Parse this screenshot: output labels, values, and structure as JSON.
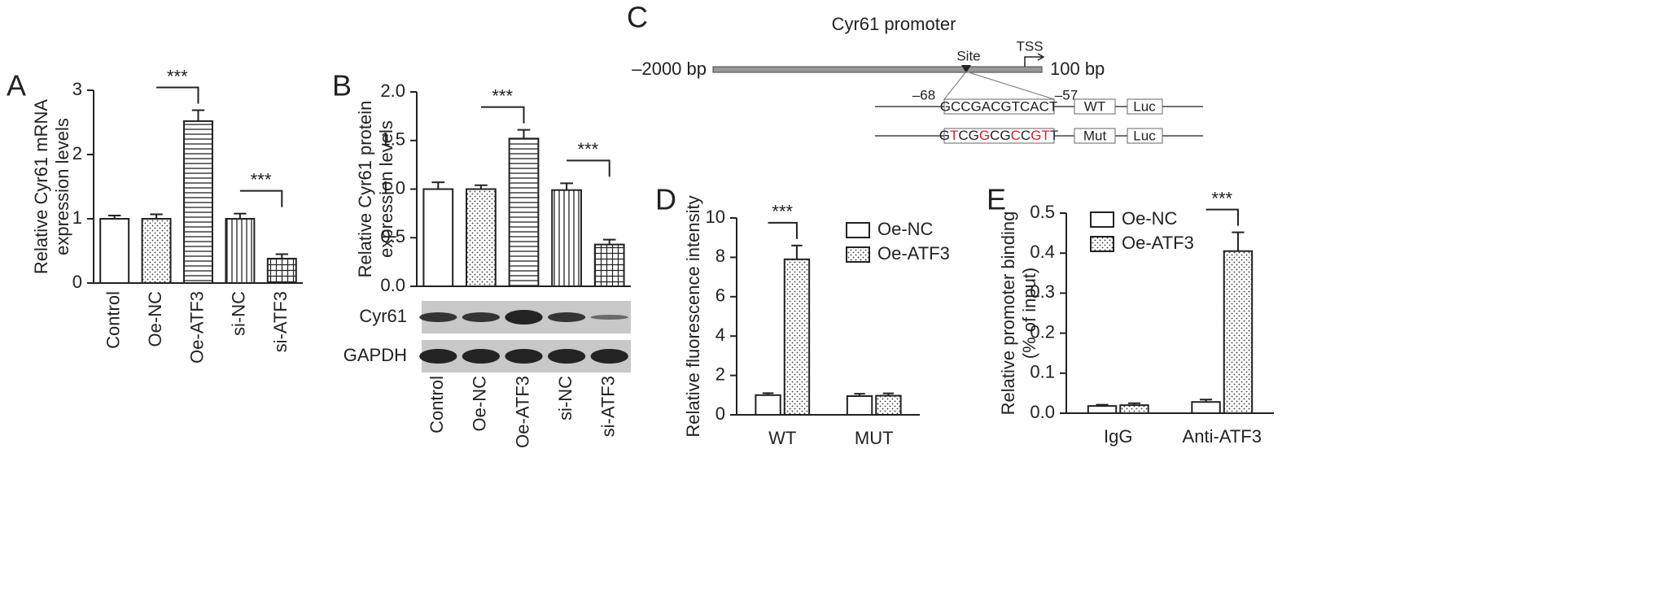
{
  "chart_data": [
    {
      "panel": "A",
      "type": "bar",
      "ylabel": [
        "Relative Cyr61 mRNA",
        "expression levels"
      ],
      "categories": [
        "Control",
        "Oe-NC",
        "Oe-ATF3",
        "si-NC",
        "si-ATF3"
      ],
      "values": [
        1.0,
        1.0,
        2.52,
        1.0,
        0.38
      ],
      "errors": [
        0.05,
        0.07,
        0.17,
        0.08,
        0.07
      ],
      "patterns": [
        "none",
        "dots",
        "hlines",
        "vlines",
        "grid"
      ],
      "ylim": [
        0,
        3
      ],
      "yticks": [
        0,
        1,
        2,
        3
      ],
      "annotations": [
        {
          "text": "***",
          "between": [
            "Oe-NC",
            "Oe-ATF3"
          ]
        },
        {
          "text": "***",
          "between": [
            "si-NC",
            "si-ATF3"
          ]
        }
      ]
    },
    {
      "panel": "B",
      "type": "bar",
      "ylabel": [
        "Relative Cyr61 protein",
        "expression levels"
      ],
      "categories": [
        "Control",
        "Oe-NC",
        "Oe-ATF3",
        "si-NC",
        "si-ATF3"
      ],
      "values": [
        1.0,
        1.0,
        1.52,
        0.99,
        0.43
      ],
      "errors": [
        0.07,
        0.04,
        0.09,
        0.07,
        0.05
      ],
      "patterns": [
        "none",
        "dots",
        "hlines",
        "vlines",
        "grid"
      ],
      "ylim": [
        0,
        2
      ],
      "yticks": [
        {
          "value": 0,
          "label": "0.0"
        },
        0.5,
        {
          "value": 1,
          "label": "1.0"
        },
        1.5,
        {
          "value": 2,
          "label": "2.0"
        }
      ],
      "blot_labels": [
        "Cyr61",
        "GAPDH"
      ],
      "annotations": [
        {
          "text": "***",
          "between": [
            "Oe-NC",
            "Oe-ATF3"
          ]
        },
        {
          "text": "***",
          "between": [
            "si-NC",
            "si-ATF3"
          ]
        }
      ]
    },
    {
      "panel": "D",
      "type": "grouped-bar",
      "ylabel": [
        "Relative fluorescence intensity"
      ],
      "categories": [
        "WT",
        "MUT"
      ],
      "series": [
        {
          "name": "Oe-NC",
          "pattern": "none",
          "values": [
            1.0,
            0.95
          ],
          "errors": [
            0.1,
            0.12
          ]
        },
        {
          "name": "Oe-ATF3",
          "pattern": "dots",
          "values": [
            7.9,
            0.97
          ],
          "errors": [
            0.7,
            0.12
          ]
        }
      ],
      "ylim": [
        0,
        10
      ],
      "yticks": [
        0,
        2,
        4,
        6,
        8,
        10
      ],
      "legend": "top-right",
      "annotations": [
        {
          "text": "***",
          "category": "WT"
        }
      ]
    },
    {
      "panel": "E",
      "type": "grouped-bar",
      "ylabel": [
        "Relative promoter binding",
        "(% of input)"
      ],
      "categories": [
        "IgG",
        "Anti-ATF3"
      ],
      "series": [
        {
          "name": "Oe-NC",
          "pattern": "none",
          "values": [
            0.018,
            0.028
          ],
          "errors": [
            0.003,
            0.006
          ]
        },
        {
          "name": "Oe-ATF3",
          "pattern": "dots",
          "values": [
            0.02,
            0.405
          ],
          "errors": [
            0.005,
            0.047
          ]
        }
      ],
      "ylim": [
        0,
        0.5
      ],
      "yticks": [
        {
          "value": 0,
          "label": "0.0"
        },
        0.1,
        0.2,
        0.3,
        0.4,
        0.5
      ],
      "legend": "top-left",
      "annotations": [
        {
          "text": "***",
          "category": "Anti-ATF3"
        }
      ]
    }
  ],
  "diagram": {
    "panel": "C",
    "title": "Cyr61 promoter",
    "left_label": "–2000 bp",
    "right_label": "100 bp",
    "site": "Site",
    "tss": "TSS",
    "start": "–68",
    "end": "–57",
    "wt_sequence": "GCCGACGTCACT",
    "wt_label": "WT",
    "mut_label": "Mut",
    "reporter": "Luc",
    "mut_sequence_parts": [
      {
        "text": "G",
        "mutated": false
      },
      {
        "text": "T",
        "mutated": true
      },
      {
        "text": "CG",
        "mutated": false
      },
      {
        "text": "G",
        "mutated": true
      },
      {
        "text": "CG",
        "mutated": false
      },
      {
        "text": "C",
        "mutated": true
      },
      {
        "text": "C",
        "mutated": false
      },
      {
        "text": "GT",
        "mutated": true
      },
      {
        "text": "T",
        "mutated": false
      }
    ]
  }
}
